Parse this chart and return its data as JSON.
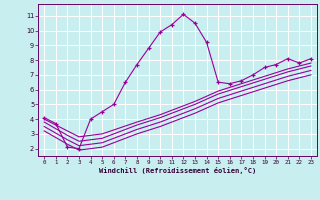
{
  "xlabel": "Windchill (Refroidissement éolien,°C)",
  "bg_color": "#c8eef0",
  "grid_color": "#ffffff",
  "line_color": "#990099",
  "xlim": [
    -0.5,
    23.5
  ],
  "ylim": [
    1.5,
    11.8
  ],
  "xticks": [
    0,
    1,
    2,
    3,
    4,
    5,
    6,
    7,
    8,
    9,
    10,
    11,
    12,
    13,
    14,
    15,
    16,
    17,
    18,
    19,
    20,
    21,
    22,
    23
  ],
  "yticks": [
    2,
    3,
    4,
    5,
    6,
    7,
    8,
    9,
    10,
    11
  ],
  "line1_x": [
    0,
    1,
    2,
    3,
    4,
    5,
    6,
    7,
    8,
    9,
    10,
    11,
    12,
    13,
    14,
    15,
    16,
    17,
    18,
    19,
    20,
    21,
    22,
    23
  ],
  "line1_y": [
    4.1,
    3.7,
    2.1,
    2.0,
    4.0,
    4.5,
    5.0,
    6.5,
    7.7,
    8.8,
    9.9,
    10.4,
    11.1,
    10.5,
    9.2,
    6.5,
    6.4,
    6.6,
    7.0,
    7.5,
    7.7,
    8.1,
    7.8,
    8.1
  ],
  "parallel_lines": [
    [
      [
        0,
        2,
        3,
        5,
        8,
        10,
        13,
        15,
        17,
        19,
        21,
        23
      ],
      [
        4.0,
        3.2,
        2.8,
        3.0,
        3.8,
        4.3,
        5.2,
        5.9,
        6.4,
        6.9,
        7.4,
        7.8
      ]
    ],
    [
      [
        0,
        2,
        3,
        5,
        8,
        10,
        13,
        15,
        17,
        19,
        21,
        23
      ],
      [
        3.8,
        2.9,
        2.5,
        2.7,
        3.6,
        4.1,
        5.0,
        5.7,
        6.2,
        6.7,
        7.2,
        7.6
      ]
    ],
    [
      [
        0,
        2,
        3,
        5,
        8,
        10,
        13,
        15,
        17,
        19,
        21,
        23
      ],
      [
        3.5,
        2.6,
        2.2,
        2.4,
        3.3,
        3.8,
        4.7,
        5.4,
        5.9,
        6.4,
        6.9,
        7.3
      ]
    ],
    [
      [
        0,
        2,
        3,
        5,
        8,
        10,
        13,
        15,
        17,
        19,
        21,
        23
      ],
      [
        3.2,
        2.3,
        1.9,
        2.1,
        3.0,
        3.5,
        4.4,
        5.1,
        5.6,
        6.1,
        6.6,
        7.0
      ]
    ]
  ]
}
